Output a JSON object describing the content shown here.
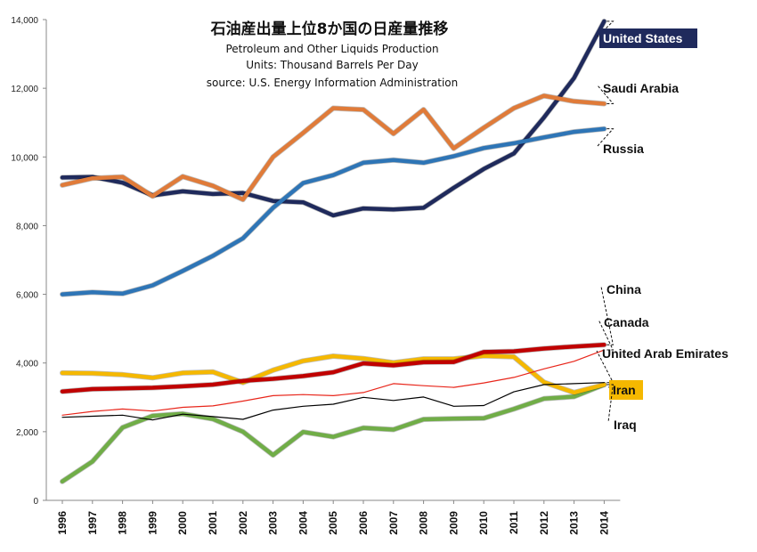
{
  "chart_data": {
    "type": "line",
    "title": "石油産出量上位8か国の日産量推移",
    "subtitle_lines": [
      "Petroleum and Other Liquids Production",
      "Units: Thousand Barrels Per Day",
      "source: U.S. Energy Information Administration"
    ],
    "xlabel": "",
    "ylabel": "",
    "ylim": [
      0,
      14000
    ],
    "yticks": [
      0,
      2000,
      4000,
      6000,
      8000,
      10000,
      12000,
      14000
    ],
    "ytick_labels": [
      "0",
      "2,000",
      "4,000",
      "6,000",
      "8,000",
      "10,000",
      "12,000",
      "14,000"
    ],
    "x": [
      "1996",
      "1997",
      "1998",
      "1999",
      "2000",
      "2001",
      "2002",
      "2003",
      "2004",
      "2005",
      "2006",
      "2007",
      "2008",
      "2009",
      "2010",
      "2011",
      "2012",
      "2013",
      "2014"
    ],
    "grid": false,
    "series": [
      {
        "name": "United States",
        "color": "#1f2a5c",
        "width": 4.5,
        "label_style": "boxed",
        "values": [
          9400,
          9420,
          9250,
          8880,
          9000,
          8920,
          8950,
          8720,
          8680,
          8300,
          8500,
          8470,
          8520,
          9100,
          9650,
          10100,
          11150,
          12300,
          13950
        ]
      },
      {
        "name": "Saudi Arabia",
        "color": "#e07b39",
        "width": 4.5,
        "label_style": "plain",
        "values": [
          9180,
          9380,
          9420,
          8860,
          9430,
          9160,
          8760,
          10000,
          10700,
          11420,
          11380,
          10680,
          11380,
          10250,
          10850,
          11420,
          11780,
          11620,
          11550
        ]
      },
      {
        "name": "Russia",
        "color": "#2e75b6",
        "width": 4.5,
        "label_style": "plain",
        "values": [
          6000,
          6060,
          6020,
          6260,
          6680,
          7120,
          7630,
          8520,
          9240,
          9470,
          9830,
          9910,
          9830,
          10020,
          10260,
          10400,
          10570,
          10730,
          10820
        ]
      },
      {
        "name": "China",
        "color": "#c00000",
        "width": 4.5,
        "label_style": "plain",
        "values": [
          3170,
          3240,
          3260,
          3280,
          3320,
          3370,
          3480,
          3540,
          3620,
          3730,
          3990,
          3930,
          4020,
          4030,
          4320,
          4340,
          4420,
          4480,
          4530
        ]
      },
      {
        "name": "Canada",
        "color": "#e8261b",
        "width": 1.2,
        "label_style": "plain",
        "values": [
          2480,
          2590,
          2660,
          2600,
          2710,
          2750,
          2890,
          3050,
          3080,
          3050,
          3140,
          3400,
          3340,
          3290,
          3420,
          3580,
          3830,
          4050,
          4380
        ]
      },
      {
        "name": "United Arab Emirates",
        "color": "#000000",
        "width": 1.2,
        "label_style": "plain",
        "values": [
          2420,
          2450,
          2480,
          2340,
          2510,
          2440,
          2360,
          2630,
          2740,
          2800,
          3000,
          2910,
          3010,
          2740,
          2760,
          3160,
          3370,
          3400,
          3430
        ]
      },
      {
        "name": "Iran",
        "color": "#f5b800",
        "width": 4.5,
        "label_style": "boxed",
        "values": [
          3710,
          3700,
          3660,
          3570,
          3710,
          3740,
          3430,
          3790,
          4060,
          4200,
          4130,
          4010,
          4120,
          4120,
          4210,
          4180,
          3440,
          3140,
          3370
        ]
      },
      {
        "name": "Iraq",
        "color": "#70ad47",
        "width": 4.5,
        "label_style": "plain",
        "values": [
          550,
          1130,
          2120,
          2460,
          2520,
          2370,
          2000,
          1320,
          1990,
          1850,
          2110,
          2060,
          2360,
          2380,
          2390,
          2660,
          2960,
          3020,
          3370
        ]
      }
    ],
    "legend": "end-labels on right"
  }
}
